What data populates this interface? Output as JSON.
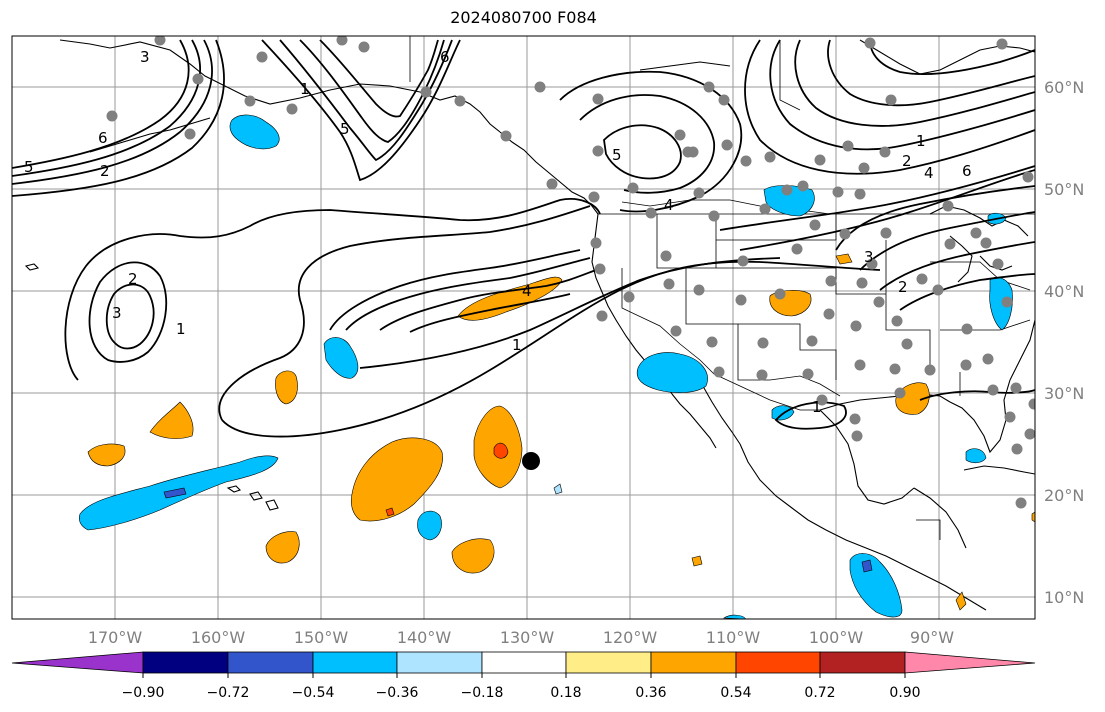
{
  "title": "2024080700 F084",
  "lon_labels": [
    "170°W",
    "160°W",
    "150°W",
    "140°W",
    "130°W",
    "120°W",
    "110°W",
    "100°W",
    "90°W"
  ],
  "lat_labels": [
    "60°N",
    "50°N",
    "40°N",
    "30°N",
    "20°N",
    "10°N"
  ],
  "colorbar": {
    "ticks": [
      "−0.90",
      "−0.72",
      "−0.54",
      "−0.36",
      "−0.18",
      "0.18",
      "0.36",
      "0.54",
      "0.72",
      "0.90"
    ],
    "colors": [
      "#9933cc",
      "#000080",
      "#3355cc",
      "#00bfff",
      "#aee4ff",
      "#ffffff",
      "#ffee88",
      "#ffa500",
      "#ff4500",
      "#b22222",
      "#ff88aa"
    ]
  },
  "contour_labels": [
    "6",
    "5",
    "2",
    "3",
    "6",
    "1",
    "5",
    "4",
    "1",
    "2",
    "3",
    "1",
    "2",
    "4",
    "6",
    "1",
    "5",
    "2",
    "4",
    "3",
    "1"
  ],
  "colors": {
    "orange": "#ffa500",
    "red_orange": "#ff4500",
    "deep_sky_blue": "#00bfff",
    "light_blue": "#aee4ff",
    "royal_blue": "#3355cc",
    "station_dot": "#808080",
    "storm_marker": "#000000"
  }
}
